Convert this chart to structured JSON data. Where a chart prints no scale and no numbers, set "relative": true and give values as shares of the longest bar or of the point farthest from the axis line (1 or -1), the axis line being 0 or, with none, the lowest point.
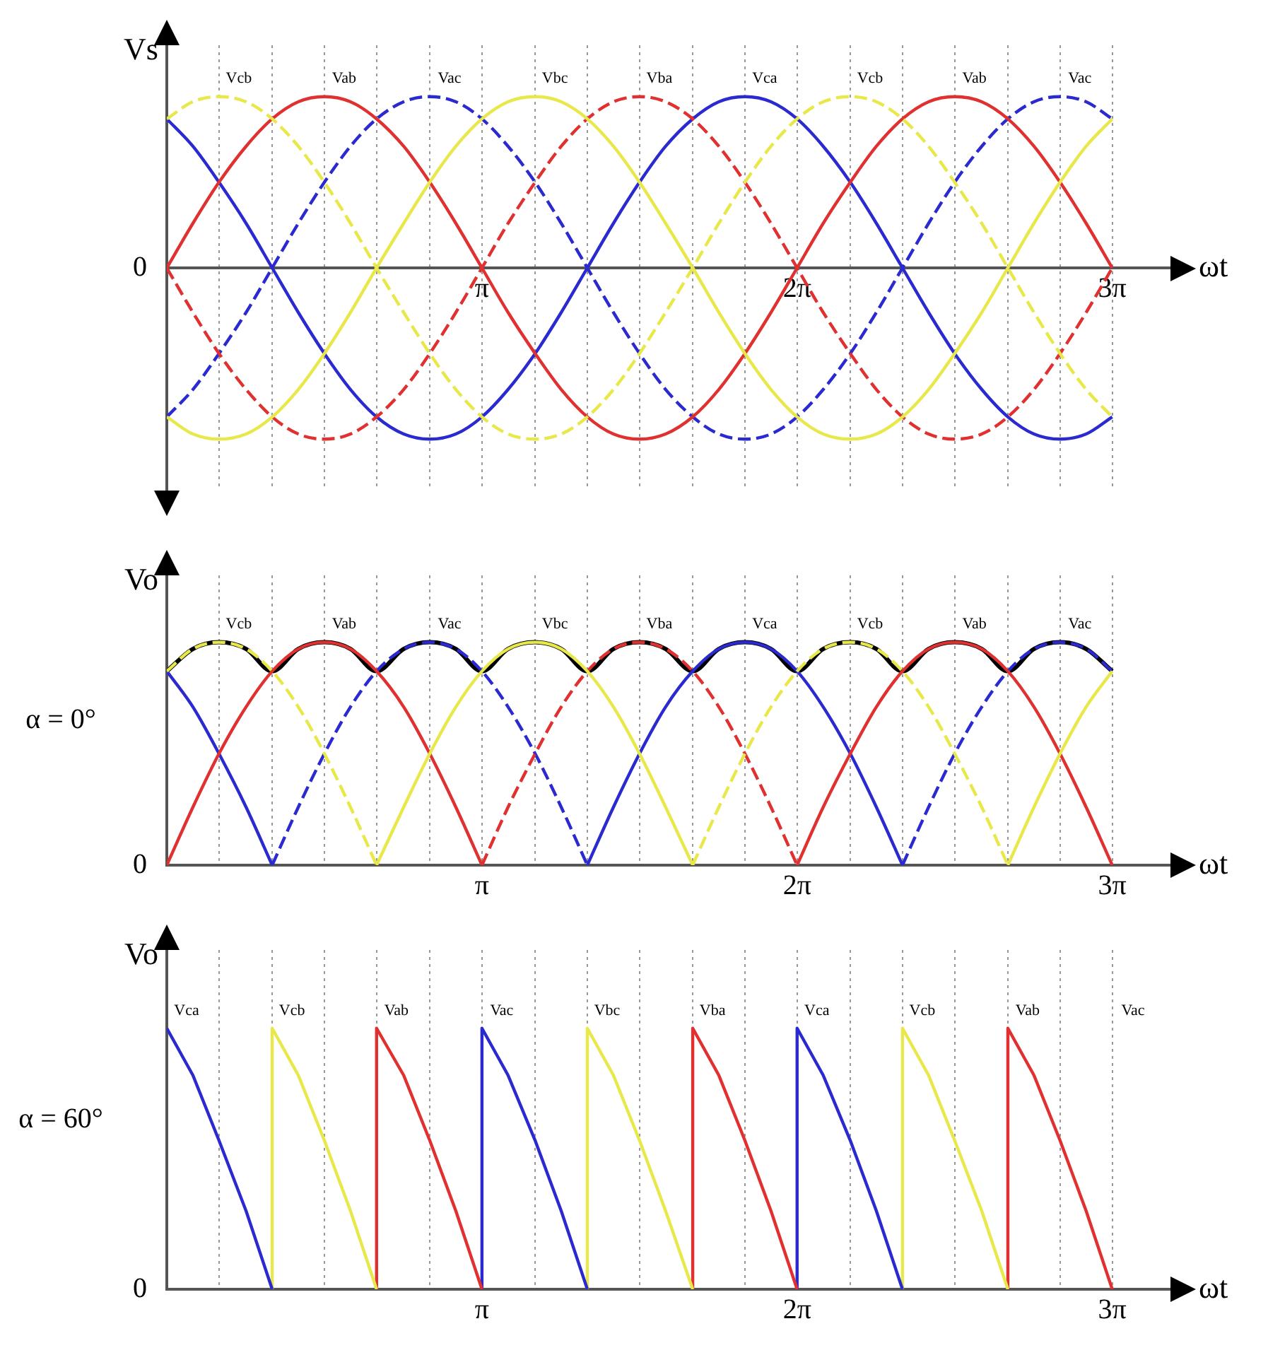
{
  "chart_data": [
    {
      "type": "line",
      "ylabel": "Vs",
      "xlabel": "ωt",
      "relative": true,
      "grid": "x",
      "legend": false,
      "xlim": [
        0,
        10
      ],
      "xticks": [
        {
          "value": 0.52,
          "label": null
        },
        {
          "value": 1.05,
          "label": null
        },
        {
          "value": 1.57,
          "label": null
        },
        {
          "value": 2.09,
          "label": null
        },
        {
          "value": 2.62,
          "label": null
        },
        {
          "value": 3.14,
          "label": "π"
        },
        {
          "value": 3.67,
          "label": null
        },
        {
          "value": 4.19,
          "label": null
        },
        {
          "value": 4.71,
          "label": null
        },
        {
          "value": 5.24,
          "label": null
        },
        {
          "value": 5.76,
          "label": null
        },
        {
          "value": 6.28,
          "label": "2π"
        },
        {
          "value": 6.81,
          "label": null
        },
        {
          "value": 7.33,
          "label": null
        },
        {
          "value": 7.85,
          "label": null
        },
        {
          "value": 8.38,
          "label": null
        },
        {
          "value": 8.9,
          "label": null
        },
        {
          "value": 9.42,
          "label": "3π"
        }
      ],
      "x": [
        0,
        0.26,
        0.52,
        0.79,
        1.05,
        1.31,
        1.57,
        1.83,
        2.09,
        2.36,
        2.62,
        2.88,
        3.14,
        3.4,
        3.67,
        3.93,
        4.19,
        4.45,
        4.71,
        4.97,
        5.24,
        5.5,
        5.76,
        6.02,
        6.28,
        6.54,
        6.81,
        7.07,
        7.33,
        7.59,
        7.85,
        8.12,
        8.38,
        8.64,
        8.9,
        9.16,
        9.42
      ],
      "series": [
        {
          "color": "#e8e84a",
          "line_style": "dashed",
          "values": [
            0.87,
            0.97,
            1,
            0.97,
            0.87,
            0.71,
            0.5,
            0.26,
            0,
            -0.26,
            -0.5,
            -0.71,
            -0.87,
            -0.97,
            -1,
            -0.97,
            -0.87,
            -0.71,
            -0.5,
            -0.26,
            0,
            0.26,
            0.5,
            0.71,
            0.87,
            0.97,
            1,
            0.97,
            0.87,
            0.71,
            0.5,
            0.26,
            0,
            -0.26,
            -0.5,
            -0.71,
            -0.87
          ]
        },
        {
          "color": "#e8e84a",
          "line_style": "solid",
          "values": [
            -0.87,
            -0.97,
            -1,
            -0.97,
            -0.87,
            -0.71,
            -0.5,
            -0.26,
            0,
            0.26,
            0.5,
            0.71,
            0.87,
            0.97,
            1,
            0.97,
            0.87,
            0.71,
            0.5,
            0.26,
            0,
            -0.26,
            -0.5,
            -0.71,
            -0.87,
            -0.97,
            -1,
            -0.97,
            -0.87,
            -0.71,
            -0.5,
            -0.26,
            0,
            0.26,
            0.5,
            0.71,
            0.87
          ]
        },
        {
          "color": "#e03030",
          "line_style": "dashed",
          "values": [
            0,
            -0.26,
            -0.5,
            -0.71,
            -0.87,
            -0.97,
            -1,
            -0.97,
            -0.87,
            -0.71,
            -0.5,
            -0.26,
            0,
            0.26,
            0.5,
            0.71,
            0.87,
            0.97,
            1,
            0.97,
            0.87,
            0.71,
            0.5,
            0.26,
            0,
            -0.26,
            -0.5,
            -0.71,
            -0.87,
            -0.97,
            -1,
            -0.97,
            -0.87,
            -0.71,
            -0.5,
            -0.26,
            0
          ]
        },
        {
          "color": "#e03030",
          "line_style": "solid",
          "values": [
            0,
            0.26,
            0.5,
            0.71,
            0.87,
            0.97,
            1,
            0.97,
            0.87,
            0.71,
            0.5,
            0.26,
            0,
            -0.26,
            -0.5,
            -0.71,
            -0.87,
            -0.97,
            -1,
            -0.97,
            -0.87,
            -0.71,
            -0.5,
            -0.26,
            0,
            0.26,
            0.5,
            0.71,
            0.87,
            0.97,
            1,
            0.97,
            0.87,
            0.71,
            0.5,
            0.26,
            0
          ]
        },
        {
          "color": "#2a2ad0",
          "line_style": "dashed",
          "values": [
            -0.87,
            -0.71,
            -0.5,
            -0.26,
            0,
            0.26,
            0.5,
            0.71,
            0.87,
            0.97,
            1,
            0.97,
            0.87,
            0.71,
            0.5,
            0.26,
            0,
            -0.26,
            -0.5,
            -0.71,
            -0.87,
            -0.97,
            -1,
            -0.97,
            -0.87,
            -0.71,
            -0.5,
            -0.26,
            0,
            0.26,
            0.5,
            0.71,
            0.87,
            0.97,
            1,
            0.97,
            0.87
          ]
        },
        {
          "color": "#2a2ad0",
          "line_style": "solid",
          "values": [
            0.87,
            0.71,
            0.5,
            0.26,
            0,
            -0.26,
            -0.5,
            -0.71,
            -0.87,
            -0.97,
            -1,
            -0.97,
            -0.87,
            -0.71,
            -0.5,
            -0.26,
            0,
            0.26,
            0.5,
            0.71,
            0.87,
            0.97,
            1,
            0.97,
            0.87,
            0.71,
            0.5,
            0.26,
            0,
            -0.26,
            -0.5,
            -0.71,
            -0.87,
            -0.97,
            -1,
            -0.97,
            -0.87
          ]
        }
      ],
      "annotations": [
        "0",
        {
          "text": "Vcb",
          "x": 0.52,
          "y": 1
        },
        {
          "text": "Vab",
          "x": 1.57,
          "y": 1
        },
        {
          "text": "Vac",
          "x": 2.62,
          "y": 1
        },
        {
          "text": "Vbc",
          "x": 3.67,
          "y": 1
        },
        {
          "text": "Vba",
          "x": 4.71,
          "y": 1
        },
        {
          "text": "Vca",
          "x": 5.76,
          "y": 1
        },
        {
          "text": "Vcb",
          "x": 6.81,
          "y": 1
        },
        {
          "text": "Vab",
          "x": 7.85,
          "y": 1
        },
        {
          "text": "Vac",
          "x": 8.9,
          "y": 1
        }
      ]
    },
    {
      "type": "line",
      "ylabel": "Vo",
      "xlabel": "ωt",
      "relative": true,
      "grid": "x",
      "legend": false,
      "xlim": [
        0,
        10
      ],
      "xticks": [
        {
          "value": 0.52,
          "label": null
        },
        {
          "value": 1.05,
          "label": null
        },
        {
          "value": 1.57,
          "label": null
        },
        {
          "value": 2.09,
          "label": null
        },
        {
          "value": 2.62,
          "label": null
        },
        {
          "value": 3.14,
          "label": "π"
        },
        {
          "value": 3.67,
          "label": null
        },
        {
          "value": 4.19,
          "label": null
        },
        {
          "value": 4.71,
          "label": null
        },
        {
          "value": 5.24,
          "label": null
        },
        {
          "value": 5.76,
          "label": null
        },
        {
          "value": 6.28,
          "label": "2π"
        },
        {
          "value": 6.81,
          "label": null
        },
        {
          "value": 7.33,
          "label": null
        },
        {
          "value": 7.85,
          "label": null
        },
        {
          "value": 8.38,
          "label": null
        },
        {
          "value": 8.9,
          "label": null
        },
        {
          "value": 9.42,
          "label": "3π"
        }
      ],
      "x": [
        0,
        0.26,
        0.52,
        0.79,
        1.05,
        1.31,
        1.57,
        1.83,
        2.09,
        2.36,
        2.62,
        2.88,
        3.14,
        3.4,
        3.67,
        3.93,
        4.19,
        4.45,
        4.71,
        4.97,
        5.24,
        5.5,
        5.76,
        6.02,
        6.28,
        6.54,
        6.81,
        7.07,
        7.33,
        7.59,
        7.85,
        8.12,
        8.38,
        8.64,
        8.9,
        9.16,
        9.42
      ],
      "series": [
        {
          "color": "#e8e84a",
          "line_style": "dashed",
          "values": [
            0.87,
            0.97,
            1,
            0.97,
            0.87,
            0.71,
            0.5,
            0.26,
            0,
            null,
            null,
            null,
            null,
            null,
            null,
            null,
            null,
            null,
            null,
            null,
            0,
            0.26,
            0.5,
            0.71,
            0.87,
            0.97,
            1,
            0.97,
            0.87,
            0.71,
            0.5,
            0.26,
            0,
            null,
            null,
            null,
            null
          ]
        },
        {
          "color": "#e8e84a",
          "line_style": "solid",
          "values": [
            null,
            null,
            null,
            null,
            null,
            null,
            null,
            null,
            0,
            0.26,
            0.5,
            0.71,
            0.87,
            0.97,
            1,
            0.97,
            0.87,
            0.71,
            0.5,
            0.26,
            0,
            null,
            null,
            null,
            null,
            null,
            null,
            null,
            null,
            null,
            null,
            null,
            0,
            0.26,
            0.5,
            0.71,
            0.87
          ]
        },
        {
          "color": "#e03030",
          "line_style": "dashed",
          "values": [
            null,
            null,
            null,
            null,
            null,
            null,
            null,
            null,
            null,
            null,
            null,
            null,
            0,
            0.26,
            0.5,
            0.71,
            0.87,
            0.97,
            1,
            0.97,
            0.87,
            0.71,
            0.5,
            0.26,
            0,
            null,
            null,
            null,
            null,
            null,
            null,
            null,
            null,
            null,
            null,
            null,
            null
          ]
        },
        {
          "color": "#e03030",
          "line_style": "solid",
          "values": [
            0,
            0.26,
            0.5,
            0.71,
            0.87,
            0.97,
            1,
            0.97,
            0.87,
            0.71,
            0.5,
            0.26,
            0,
            null,
            null,
            null,
            null,
            null,
            null,
            null,
            null,
            null,
            null,
            null,
            0,
            0.26,
            0.5,
            0.71,
            0.87,
            0.97,
            1,
            0.97,
            0.87,
            0.71,
            0.5,
            0.26,
            0
          ]
        },
        {
          "color": "#2a2ad0",
          "line_style": "dashed",
          "values": [
            null,
            null,
            null,
            null,
            0,
            0.26,
            0.5,
            0.71,
            0.87,
            0.97,
            1,
            0.97,
            0.87,
            0.71,
            0.5,
            0.26,
            0,
            null,
            null,
            null,
            null,
            null,
            null,
            null,
            null,
            null,
            null,
            null,
            0,
            0.26,
            0.5,
            0.71,
            0.87,
            0.97,
            1,
            0.97,
            0.87
          ]
        },
        {
          "color": "#2a2ad0",
          "line_style": "solid",
          "values": [
            0.87,
            0.71,
            0.5,
            0.26,
            0,
            null,
            null,
            null,
            null,
            null,
            null,
            null,
            null,
            null,
            null,
            null,
            0,
            0.26,
            0.5,
            0.71,
            0.87,
            0.97,
            1,
            0.97,
            0.87,
            0.71,
            0.5,
            0.26,
            0,
            null,
            null,
            null,
            null,
            null,
            null,
            null,
            null
          ]
        },
        {
          "color": "#000000",
          "line_style": "solid",
          "values": [
            0.87,
            0.97,
            1,
            0.97,
            0.87,
            0.97,
            1,
            0.97,
            0.87,
            0.97,
            1,
            0.97,
            0.87,
            0.97,
            1,
            0.97,
            0.87,
            0.97,
            1,
            0.97,
            0.87,
            0.97,
            1,
            0.97,
            0.87,
            0.97,
            1,
            0.97,
            0.87,
            0.97,
            1,
            0.97,
            0.87,
            0.97,
            1,
            0.97,
            0.87
          ]
        }
      ],
      "annotations": [
        "0",
        "α = 0°",
        {
          "text": "Vcb",
          "x": 0.52,
          "y": 1
        },
        {
          "text": "Vab",
          "x": 1.57,
          "y": 1
        },
        {
          "text": "Vac",
          "x": 2.62,
          "y": 1
        },
        {
          "text": "Vbc",
          "x": 3.67,
          "y": 1
        },
        {
          "text": "Vba",
          "x": 4.71,
          "y": 1
        },
        {
          "text": "Vca",
          "x": 5.76,
          "y": 1
        },
        {
          "text": "Vcb",
          "x": 6.81,
          "y": 1
        },
        {
          "text": "Vab",
          "x": 7.85,
          "y": 1
        },
        {
          "text": "Vac",
          "x": 8.9,
          "y": 1
        }
      ]
    },
    {
      "type": "line",
      "ylabel": "Vo",
      "xlabel": "ωt",
      "relative": true,
      "grid": "x",
      "legend": false,
      "xlim": [
        0,
        10
      ],
      "xticks": [
        {
          "value": 0.52,
          "label": null
        },
        {
          "value": 1.05,
          "label": null
        },
        {
          "value": 1.57,
          "label": null
        },
        {
          "value": 2.09,
          "label": null
        },
        {
          "value": 2.62,
          "label": null
        },
        {
          "value": 3.14,
          "label": "π"
        },
        {
          "value": 3.67,
          "label": null
        },
        {
          "value": 4.19,
          "label": null
        },
        {
          "value": 4.71,
          "label": null
        },
        {
          "value": 5.24,
          "label": null
        },
        {
          "value": 5.76,
          "label": null
        },
        {
          "value": 6.28,
          "label": "2π"
        },
        {
          "value": 6.81,
          "label": null
        },
        {
          "value": 7.33,
          "label": null
        },
        {
          "value": 7.85,
          "label": null
        },
        {
          "value": 8.38,
          "label": null
        },
        {
          "value": 8.9,
          "label": null
        },
        {
          "value": 9.42,
          "label": "3π"
        }
      ],
      "series": [
        {
          "color": "#2a2ad0",
          "line_style": "solid",
          "x": [
            0,
            0.26,
            0.52,
            0.79,
            1.05
          ],
          "values": [
            1,
            0.82,
            0.57,
            0.3,
            0
          ]
        },
        {
          "color": "#e8e84a",
          "line_style": "solid",
          "x": [
            1.05,
            1.05,
            1.31,
            1.57,
            1.83,
            2.09
          ],
          "values": [
            0,
            1,
            0.82,
            0.57,
            0.3,
            0
          ]
        },
        {
          "color": "#e03030",
          "line_style": "solid",
          "x": [
            2.09,
            2.09,
            2.36,
            2.62,
            2.88,
            3.14
          ],
          "values": [
            0,
            1,
            0.82,
            0.57,
            0.3,
            0
          ]
        },
        {
          "color": "#2a2ad0",
          "line_style": "solid",
          "x": [
            3.14,
            3.14,
            3.4,
            3.67,
            3.93,
            4.19
          ],
          "values": [
            0,
            1,
            0.82,
            0.57,
            0.3,
            0
          ]
        },
        {
          "color": "#e8e84a",
          "line_style": "solid",
          "x": [
            4.19,
            4.19,
            4.45,
            4.71,
            4.97,
            5.24
          ],
          "values": [
            0,
            1,
            0.82,
            0.57,
            0.3,
            0
          ]
        },
        {
          "color": "#e03030",
          "line_style": "solid",
          "x": [
            5.24,
            5.24,
            5.5,
            5.76,
            6.02,
            6.28
          ],
          "values": [
            0,
            1,
            0.82,
            0.57,
            0.3,
            0
          ]
        },
        {
          "color": "#2a2ad0",
          "line_style": "solid",
          "x": [
            6.28,
            6.28,
            6.54,
            6.81,
            7.07,
            7.33
          ],
          "values": [
            0,
            1,
            0.82,
            0.57,
            0.3,
            0
          ]
        },
        {
          "color": "#e8e84a",
          "line_style": "solid",
          "x": [
            7.33,
            7.33,
            7.59,
            7.85,
            8.12,
            8.38
          ],
          "values": [
            0,
            1,
            0.82,
            0.57,
            0.3,
            0
          ]
        },
        {
          "color": "#e03030",
          "line_style": "solid",
          "x": [
            8.38,
            8.38,
            8.64,
            8.9,
            9.16,
            9.42
          ],
          "values": [
            0,
            1,
            0.82,
            0.57,
            0.3,
            0
          ]
        }
      ],
      "annotations": [
        "0",
        "α = 60°",
        {
          "text": "Vca",
          "x": 0,
          "y": 1
        },
        {
          "text": "Vcb",
          "x": 1.05,
          "y": 1
        },
        {
          "text": "Vab",
          "x": 2.09,
          "y": 1
        },
        {
          "text": "Vac",
          "x": 3.14,
          "y": 1
        },
        {
          "text": "Vbc",
          "x": 4.19,
          "y": 1
        },
        {
          "text": "Vba",
          "x": 5.24,
          "y": 1
        },
        {
          "text": "Vca",
          "x": 6.28,
          "y": 1
        },
        {
          "text": "Vcb",
          "x": 7.33,
          "y": 1
        },
        {
          "text": "Vab",
          "x": 8.38,
          "y": 1
        },
        "Vac"
      ]
    }
  ]
}
